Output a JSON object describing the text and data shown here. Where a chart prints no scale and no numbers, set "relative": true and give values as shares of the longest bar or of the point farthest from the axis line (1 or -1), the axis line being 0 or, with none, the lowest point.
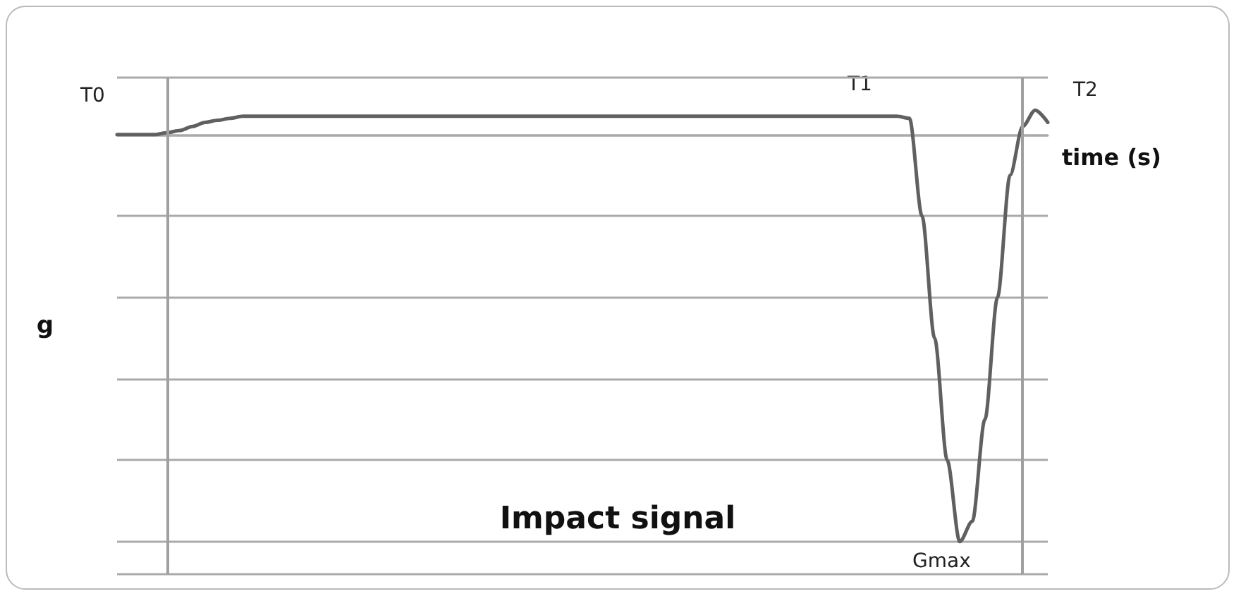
{
  "chart_data": {
    "type": "line",
    "relative": true,
    "title": "Impact signal",
    "xlabel": "time (s)",
    "ylabel": "g",
    "categories": [
      null,
      null,
      null,
      null,
      null,
      null,
      null,
      null,
      null,
      null,
      null,
      null,
      null,
      null,
      null,
      null,
      null,
      null,
      null,
      null,
      null,
      null,
      null,
      null,
      null,
      null,
      null,
      null,
      null,
      null,
      null,
      null,
      null,
      null,
      null,
      null,
      null,
      null,
      null,
      null,
      null,
      null,
      null,
      null,
      null,
      null,
      null,
      null,
      null,
      null,
      null,
      null,
      null,
      null,
      null,
      null,
      null,
      null,
      null,
      null,
      null,
      null,
      null,
      null,
      null,
      null,
      null,
      null,
      null,
      null,
      null,
      null,
      null,
      null,
      null
    ],
    "series": [
      {
        "color": "#606060",
        "values": [
          0,
          0,
          0,
          0,
          0.005,
          0.01,
          0.02,
          0.03,
          0.035,
          0.04,
          0.045,
          0.045,
          0.045,
          0.045,
          0.045,
          0.045,
          0.045,
          0.045,
          0.045,
          0.045,
          0.045,
          0.045,
          0.045,
          0.045,
          0.045,
          0.045,
          0.045,
          0.045,
          0.045,
          0.045,
          0.045,
          0.045,
          0.045,
          0.045,
          0.045,
          0.045,
          0.045,
          0.045,
          0.045,
          0.045,
          0.045,
          0.045,
          0.045,
          0.045,
          0.045,
          0.045,
          0.045,
          0.045,
          0.045,
          0.045,
          0.045,
          0.045,
          0.045,
          0.045,
          0.045,
          0.045,
          0.045,
          0.045,
          0.045,
          0.045,
          0.045,
          0.045,
          0.045,
          0.04,
          -0.2,
          -0.5,
          -0.8,
          -1,
          -0.95,
          -0.7,
          -0.4,
          -0.1,
          0.02,
          0.06,
          0.03
        ]
      }
    ],
    "annotations": [
      "T0",
      "T1",
      "T2",
      "Gmax"
    ],
    "grid": "y",
    "marker": "none",
    "line_style": "solid"
  }
}
